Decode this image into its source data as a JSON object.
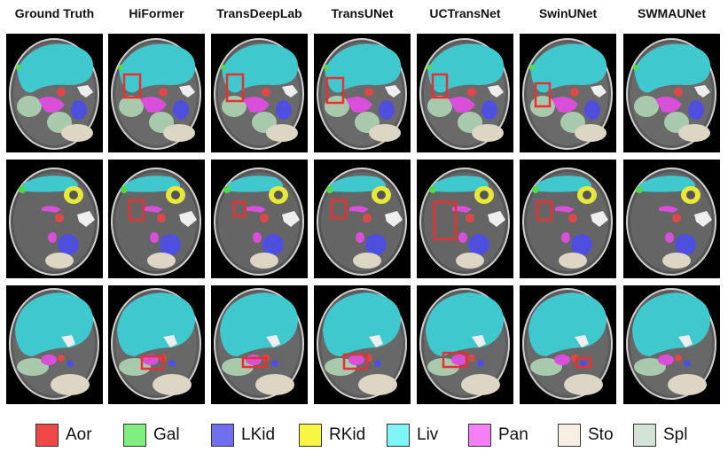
{
  "columns": [
    "Ground Truth",
    "HiFormer",
    "TransDeepLab",
    "TransUNet",
    "UCTransNet",
    "SwinUNet",
    "SWMAUNet"
  ],
  "legend": [
    {
      "label": "Aor",
      "color": "#f04848"
    },
    {
      "label": "Gal",
      "color": "#7fef7f"
    },
    {
      "label": "LKid",
      "color": "#6f6fef"
    },
    {
      "label": "RKid",
      "color": "#f5f542"
    },
    {
      "label": "Liv",
      "color": "#7ff5f5"
    },
    {
      "label": "Pan",
      "color": "#f57ff5"
    },
    {
      "label": "Sto",
      "color": "#f7efe2"
    },
    {
      "label": "Spl",
      "color": "#d2e2d6"
    }
  ],
  "colors": {
    "liver": "#3fc9cf",
    "stomach": "#ddd6c4",
    "spleen": "#a9c9ad",
    "pancreas": "#d94fd9",
    "aorta": "#e04848",
    "kidney_left": "#4f4fdf",
    "kidney_right": "#e8e83a",
    "gallbladder": "#4fd94f",
    "highlight_box": "#e83030"
  }
}
